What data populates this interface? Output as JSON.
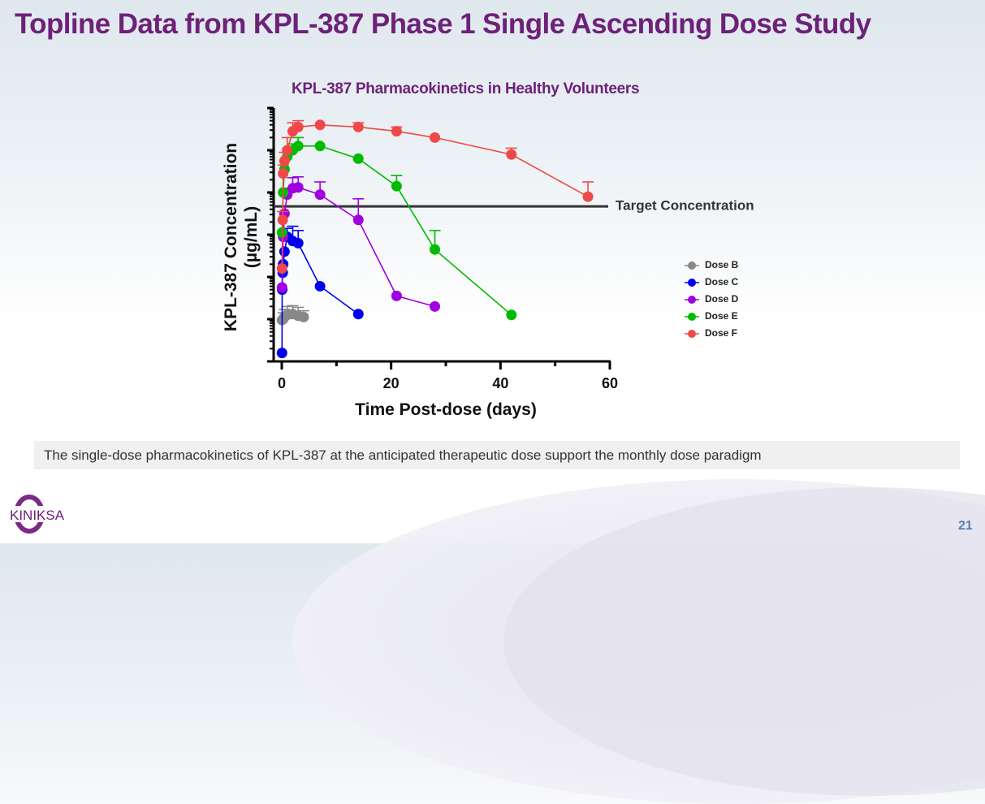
{
  "slide": {
    "title": "Topline Data from KPL-387 Phase 1 Single Ascending Dose Study",
    "footer_banner": "The single-dose pharmacokinetics of KPL-387 at the anticipated therapeutic dose support the monthly dose paradigm",
    "page_number": "21",
    "logo_text": "KINIKSA",
    "colors": {
      "title": "#6e2179",
      "page_number": "#4f81bd"
    }
  },
  "chart_data": {
    "type": "line",
    "title": "KPL-387 Pharmacokinetics in Healthy Volunteers",
    "xlabel": "Time Post-dose (days)",
    "ylabel": "KPL-387 Concentration (µg/mL)",
    "y_scale": "log",
    "y_units_note": "y values are in log decades above the axis minimum (no y tick labels shown)",
    "xlim": [
      0,
      60
    ],
    "ylim": [
      0,
      6
    ],
    "x_ticks": [
      0,
      20,
      40,
      60
    ],
    "x_minor_ticks": [
      10,
      30,
      50
    ],
    "y_major_ticks": [
      0,
      1,
      2,
      3,
      4,
      5,
      6
    ],
    "grid": false,
    "legend_position": "right",
    "reference_line": {
      "label": "Target Concentration",
      "y": 3.67
    },
    "series": [
      {
        "name": "Dose B",
        "color": "#888888",
        "x": [
          0.04,
          0.25,
          0.5,
          1,
          2,
          3,
          4
        ],
        "y": [
          0.98,
          1.0,
          1.05,
          1.1,
          1.12,
          1.08,
          1.05
        ],
        "err": [
          0,
          0.15,
          0.18,
          0.2,
          0.2,
          0.2,
          0.15
        ]
      },
      {
        "name": "Dose C",
        "color": "#0000ee",
        "x": [
          0.04,
          0.08,
          0.17,
          0.25,
          0.5,
          1,
          2,
          3,
          7,
          14
        ],
        "y": [
          0.2,
          1.7,
          2.1,
          2.3,
          2.6,
          2.95,
          2.85,
          2.8,
          1.78,
          1.12
        ],
        "err": [
          0,
          0,
          0,
          0,
          0,
          0.2,
          0.35,
          0.3,
          0,
          0
        ]
      },
      {
        "name": "Dose D",
        "color": "#a000e0",
        "x": [
          0.04,
          0.25,
          0.5,
          1,
          2,
          3,
          7,
          14,
          21,
          28
        ],
        "y": [
          1.75,
          2.95,
          3.5,
          3.95,
          4.1,
          4.12,
          3.95,
          3.35,
          1.55,
          1.3
        ],
        "err": [
          0,
          0,
          0,
          0.15,
          0.25,
          0.25,
          0.3,
          0.5,
          0,
          0
        ]
      },
      {
        "name": "Dose E",
        "color": "#00bb00",
        "x": [
          0.04,
          0.25,
          0.5,
          1,
          2,
          3,
          7,
          14,
          21,
          28,
          42
        ],
        "y": [
          3.05,
          4.0,
          4.55,
          4.85,
          5.0,
          5.1,
          5.1,
          4.8,
          4.15,
          2.65,
          1.1
        ],
        "err": [
          0,
          0,
          0,
          0,
          0.15,
          0.2,
          0,
          0,
          0.25,
          0.45,
          0
        ]
      },
      {
        "name": "Dose F",
        "color": "#f04848",
        "x": [
          0.04,
          0.17,
          0.25,
          0.5,
          1,
          2,
          3,
          7,
          14,
          21,
          28,
          42,
          56
        ],
        "y": [
          2.2,
          3.35,
          4.45,
          4.75,
          5.0,
          5.45,
          5.55,
          5.6,
          5.55,
          5.45,
          5.3,
          4.9,
          3.9
        ],
        "err": [
          0,
          0.2,
          0.2,
          0.2,
          0.3,
          0.2,
          0.15,
          0,
          0.1,
          0.1,
          0,
          0.15,
          0.35
        ]
      }
    ]
  }
}
